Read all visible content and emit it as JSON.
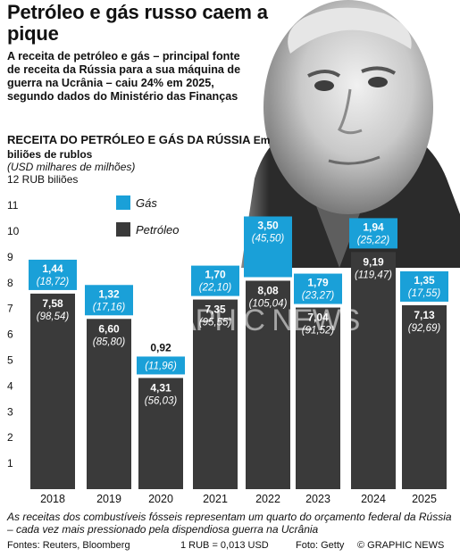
{
  "header": {
    "title": "Petróleo e gás russo caem a pique",
    "subtitle": "A receita de petróleo e gás – principal fonte de receita da Rússia para a sua máquina de guerra na Ucrânia – caiu 24% em 2025, segundo dados do Ministério das Finanças"
  },
  "chart_data": {
    "type": "bar",
    "stacked": true,
    "title": "RECEITA DO PETRÓLEO E GÁS DA RÚSSIA",
    "unit": "Em biliões de rublos",
    "subtitle": "(USD milhares de milhões)",
    "ylabel": "RUB biliões",
    "ylim": [
      0,
      12
    ],
    "yticks": [
      1,
      2,
      3,
      4,
      5,
      6,
      7,
      8,
      9,
      10,
      11,
      12
    ],
    "categories": [
      "2018",
      "2019",
      "2020",
      "2021",
      "2022",
      "2023",
      "2024",
      "2025"
    ],
    "series": [
      {
        "name": "Petróleo",
        "color": "#3a3a3a",
        "values": [
          7.58,
          6.6,
          4.31,
          7.35,
          8.08,
          7.04,
          9.19,
          7.13
        ],
        "labels": [
          "7,58",
          "6,60",
          "4,31",
          "7,35",
          "8,08",
          "7,04",
          "9,19",
          "7,13"
        ],
        "usd_labels": [
          "(98,54)",
          "(85,80)",
          "(56,03)",
          "(95,55)",
          "(105,04)",
          "(91,52)",
          "(119,47)",
          "(92,69)"
        ]
      },
      {
        "name": "Gás",
        "color": "#1aa0d8",
        "values": [
          1.44,
          1.32,
          0.92,
          1.7,
          3.5,
          1.79,
          1.94,
          1.35
        ],
        "labels": [
          "1,44",
          "1,32",
          "0,92",
          "1,70",
          "3,50",
          "1,79",
          "1,94",
          "1,35"
        ],
        "usd_labels": [
          "(18,72)",
          "(17,16)",
          "(11,96)",
          "(22,10)",
          "(45,50)",
          "(23,27)",
          "(25,22)",
          "(17,55)"
        ]
      }
    ],
    "legend_position": "top-left",
    "grid": false
  },
  "watermark": "GRAPHIC NEWS",
  "footer": {
    "note": "As receitas dos combustíveis fósseis representam um quarto do orçamento federal da Rússia – cada vez mais pressionado pela dispendiosa guerra na Ucrânia",
    "sources": "Fontes: Reuters, Bloomberg",
    "conversion": "1 RUB = 0,013 USD",
    "photo_credit": "Foto: Getty",
    "copyright": "© GRAPHIC NEWS"
  }
}
